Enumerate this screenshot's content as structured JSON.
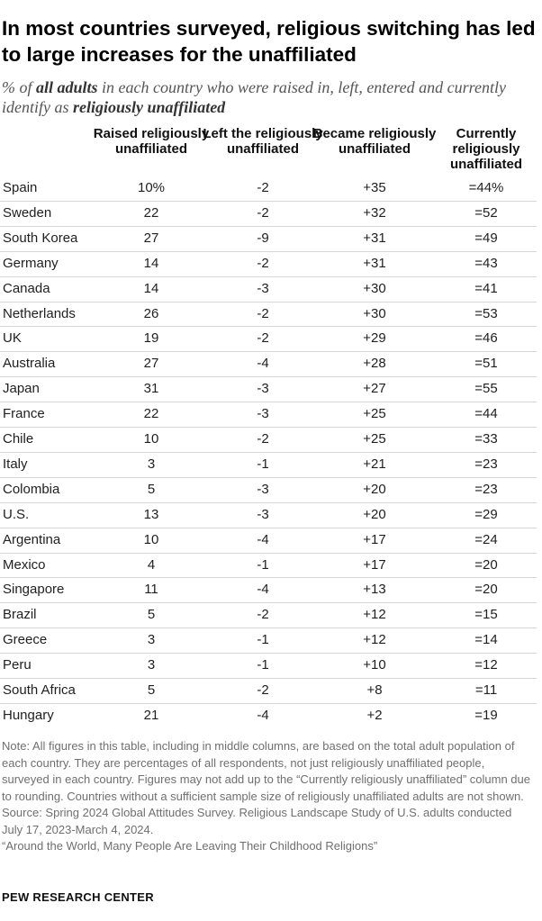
{
  "title": "In most countries surveyed, religious switching has led to large increases for the unaffiliated",
  "subtitle": {
    "part1": "% of ",
    "bold1": "all adults",
    "part2": " in each country who were raised in, left, entered and currently identify as ",
    "bold2": "religiously unaffiliated"
  },
  "chart_data": {
    "type": "table",
    "columns": [
      "Raised religiously unaffiliated",
      "Left the religiously unaffiliated",
      "Became religiously unaffiliated",
      "Currently religiously unaffiliated"
    ],
    "rows": [
      {
        "country": "Spain",
        "raised": "10%",
        "left": "-2",
        "became": "+35",
        "current": "=44%"
      },
      {
        "country": "Sweden",
        "raised": "22",
        "left": "-2",
        "became": "+32",
        "current": "=52"
      },
      {
        "country": "South Korea",
        "raised": "27",
        "left": "-9",
        "became": "+31",
        "current": "=49"
      },
      {
        "country": "Germany",
        "raised": "14",
        "left": "-2",
        "became": "+31",
        "current": "=43"
      },
      {
        "country": "Canada",
        "raised": "14",
        "left": "-3",
        "became": "+30",
        "current": "=41"
      },
      {
        "country": "Netherlands",
        "raised": "26",
        "left": "-2",
        "became": "+30",
        "current": "=53"
      },
      {
        "country": "UK",
        "raised": "19",
        "left": "-2",
        "became": "+29",
        "current": "=46"
      },
      {
        "country": "Australia",
        "raised": "27",
        "left": "-4",
        "became": "+28",
        "current": "=51"
      },
      {
        "country": "Japan",
        "raised": "31",
        "left": "-3",
        "became": "+27",
        "current": "=55"
      },
      {
        "country": "France",
        "raised": "22",
        "left": "-3",
        "became": "+25",
        "current": "=44"
      },
      {
        "country": "Chile",
        "raised": "10",
        "left": "-2",
        "became": "+25",
        "current": "=33"
      },
      {
        "country": "Italy",
        "raised": "3",
        "left": "-1",
        "became": "+21",
        "current": "=23"
      },
      {
        "country": "Colombia",
        "raised": "5",
        "left": "-3",
        "became": "+20",
        "current": "=23"
      },
      {
        "country": "U.S.",
        "raised": "13",
        "left": "-3",
        "became": "+20",
        "current": "=29"
      },
      {
        "country": "Argentina",
        "raised": "10",
        "left": "-4",
        "became": "+17",
        "current": "=24"
      },
      {
        "country": "Mexico",
        "raised": "4",
        "left": "-1",
        "became": "+17",
        "current": "=20"
      },
      {
        "country": "Singapore",
        "raised": "11",
        "left": "-4",
        "became": "+13",
        "current": "=20"
      },
      {
        "country": "Brazil",
        "raised": "5",
        "left": "-2",
        "became": "+12",
        "current": "=15"
      },
      {
        "country": "Greece",
        "raised": "3",
        "left": "-1",
        "became": "+12",
        "current": "=14"
      },
      {
        "country": "Peru",
        "raised": "3",
        "left": "-1",
        "became": "+10",
        "current": "=12"
      },
      {
        "country": "South Africa",
        "raised": "5",
        "left": "-2",
        "became": "+8",
        "current": "=11"
      },
      {
        "country": "Hungary",
        "raised": "21",
        "left": "-4",
        "became": "+2",
        "current": "=19"
      }
    ]
  },
  "notes": {
    "note": "Note: All figures in this table, including in middle columns, are based on the total adult population of each country. They are percentages of all respondents, not just religiously unaffiliated people, surveyed in each country. Figures may not add up to the “Currently religiously unaffiliated” column due to rounding. Countries without a sufficient sample size of religiously unaffiliated adults are not shown.",
    "source": "Source: Spring 2024 Global Attitudes Survey. Religious Landscape Study of U.S. adults conducted July 17, 2023-March 4, 2024.",
    "report": "“Around the World, Many People Are Leaving Their Childhood Religions”"
  },
  "brand": "PEW RESEARCH CENTER",
  "colors": {
    "text": "#1f1f1f",
    "subtitle": "#555555",
    "divider": "#d6d6d6",
    "note": "#6f6f6f"
  }
}
